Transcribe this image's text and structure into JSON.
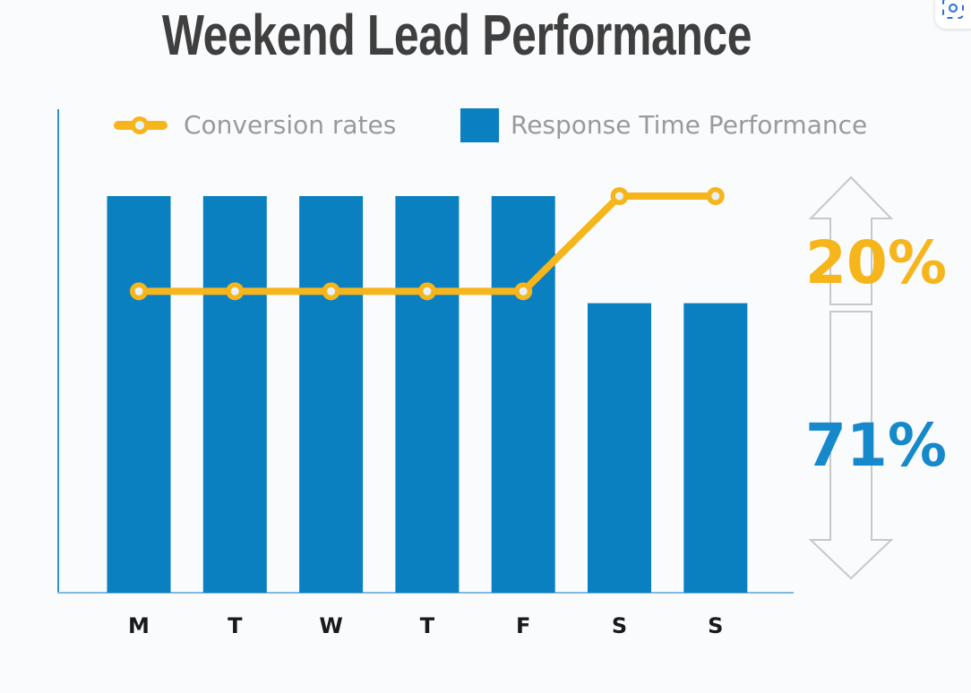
{
  "chart_data": {
    "type": "bar",
    "title": "Weekend Lead Performance",
    "categories": [
      "M",
      "T",
      "W",
      "T",
      "F",
      "S",
      "S"
    ],
    "series": [
      {
        "name": "Response Time Performance",
        "type": "bar",
        "color": "#0a80c0",
        "values": [
          100,
          100,
          100,
          100,
          100,
          73,
          73
        ]
      },
      {
        "name": "Conversion rates",
        "type": "line",
        "color": "#f7b51c",
        "values": [
          76,
          76,
          76,
          76,
          76,
          100,
          100
        ]
      }
    ],
    "ylim": [
      0,
      100
    ],
    "xlabel": "",
    "ylabel": "",
    "grid": false,
    "legend": "top",
    "annotations": [
      {
        "text": "20%",
        "color": "#f7b51c",
        "arrow": "up"
      },
      {
        "text": "71%",
        "color": "#1689cb",
        "arrow": "down"
      }
    ]
  }
}
